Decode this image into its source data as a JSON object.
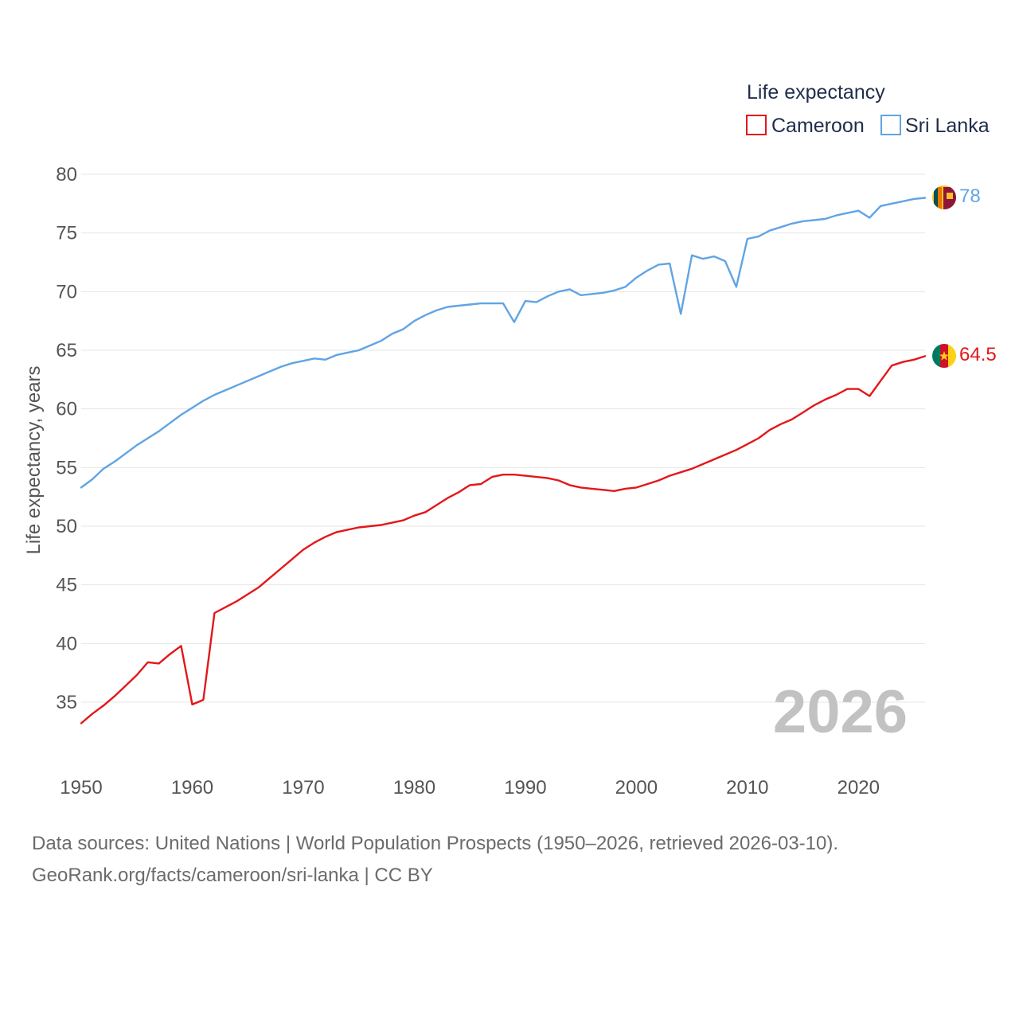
{
  "chart_data": {
    "type": "line",
    "legend_title": "Life expectancy",
    "ylabel": "Life expectancy, years",
    "xlabel": "",
    "xlim": [
      1950,
      2026
    ],
    "ylim": [
      31,
      81
    ],
    "xticks": [
      1950,
      1960,
      1970,
      1980,
      1990,
      2000,
      2010,
      2020
    ],
    "yticks": [
      35,
      40,
      45,
      50,
      55,
      60,
      65,
      70,
      75,
      80
    ],
    "grid": true,
    "legend_position": "top-right",
    "year_label": "2026",
    "x": [
      1950,
      1951,
      1952,
      1953,
      1954,
      1955,
      1956,
      1957,
      1958,
      1959,
      1960,
      1961,
      1962,
      1963,
      1964,
      1965,
      1966,
      1967,
      1968,
      1969,
      1970,
      1971,
      1972,
      1973,
      1974,
      1975,
      1976,
      1977,
      1978,
      1979,
      1980,
      1981,
      1982,
      1983,
      1984,
      1985,
      1986,
      1987,
      1988,
      1989,
      1990,
      1991,
      1992,
      1993,
      1994,
      1995,
      1996,
      1997,
      1998,
      1999,
      2000,
      2001,
      2002,
      2003,
      2004,
      2005,
      2006,
      2007,
      2008,
      2009,
      2010,
      2011,
      2012,
      2013,
      2014,
      2015,
      2016,
      2017,
      2018,
      2019,
      2020,
      2021,
      2022,
      2023,
      2024,
      2025,
      2026
    ],
    "series": [
      {
        "name": "Cameroon",
        "color": "#e3171a",
        "flag": "cameroon-flag-icon",
        "end_label": "64.5",
        "values": [
          33.2,
          34.0,
          34.7,
          35.5,
          36.4,
          37.3,
          38.4,
          38.3,
          39.1,
          39.8,
          34.8,
          35.2,
          42.6,
          43.1,
          43.6,
          44.2,
          44.8,
          45.6,
          46.4,
          47.2,
          48.0,
          48.6,
          49.1,
          49.5,
          49.7,
          49.9,
          50.0,
          50.1,
          50.3,
          50.5,
          50.9,
          51.2,
          51.8,
          52.4,
          52.9,
          53.5,
          53.6,
          54.2,
          54.4,
          54.4,
          54.3,
          54.2,
          54.1,
          53.9,
          53.5,
          53.3,
          53.2,
          53.1,
          53.0,
          53.2,
          53.3,
          53.6,
          53.9,
          54.3,
          54.6,
          54.9,
          55.3,
          55.7,
          56.1,
          56.5,
          57.0,
          57.5,
          58.2,
          58.7,
          59.1,
          59.7,
          60.3,
          60.8,
          61.2,
          61.7,
          61.7,
          61.1,
          62.4,
          63.7,
          64.0,
          64.2,
          64.5
        ]
      },
      {
        "name": "Sri Lanka",
        "color": "#61a4e4",
        "flag": "sri-lanka-flag-icon",
        "end_label": "78",
        "values": [
          53.3,
          54.0,
          54.9,
          55.5,
          56.2,
          56.9,
          57.5,
          58.1,
          58.8,
          59.5,
          60.1,
          60.7,
          61.2,
          61.6,
          62.0,
          62.4,
          62.8,
          63.2,
          63.6,
          63.9,
          64.1,
          64.3,
          64.2,
          64.6,
          64.8,
          65.0,
          65.4,
          65.8,
          66.4,
          66.8,
          67.5,
          68.0,
          68.4,
          68.7,
          68.8,
          68.9,
          69.0,
          69.0,
          69.0,
          67.4,
          69.2,
          69.1,
          69.6,
          70.0,
          70.2,
          69.7,
          69.8,
          69.9,
          70.1,
          70.4,
          71.2,
          71.8,
          72.3,
          72.4,
          68.1,
          73.1,
          72.8,
          73.0,
          72.6,
          70.4,
          74.5,
          74.7,
          75.2,
          75.5,
          75.8,
          76.0,
          76.1,
          76.2,
          76.5,
          76.7,
          76.9,
          76.3,
          77.3,
          77.5,
          77.7,
          77.9,
          78.0
        ]
      }
    ]
  },
  "footer": {
    "sources": "Data sources: United Nations | World Population Prospects (1950–2026, retrieved 2026-03-10).",
    "link": "GeoRank.org/facts/cameroon/sri-lanka | CC BY"
  }
}
